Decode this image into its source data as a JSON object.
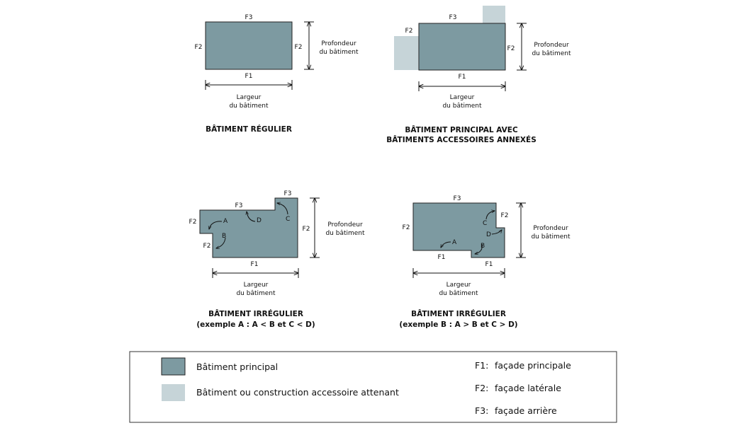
{
  "colors": {
    "main": "#7d9aa1",
    "accessory": "#c6d4d8",
    "stroke": "#222222"
  },
  "labels": {
    "f1": "F1",
    "f2": "F2",
    "f3": "F3",
    "a": "A",
    "b": "B",
    "c": "C",
    "d": "D",
    "depth_l1": "Profondeur",
    "depth_l2": "du bâtiment",
    "width_l1": "Largeur",
    "width_l2": "du bâtiment"
  },
  "diagrams": {
    "regular": {
      "title": "BÂTIMENT RÉGULIER"
    },
    "accessory": {
      "title_l1": "BÂTIMENT PRINCIPAL AVEC",
      "title_l2": "BÂTIMENTS ACCESSOIRES ANNEXÉS"
    },
    "irregular_a": {
      "title_l1": "BÂTIMENT IRRÉGULIER",
      "title_l2": "(exemple A : A < B et C < D)"
    },
    "irregular_b": {
      "title_l1": "BÂTIMENT IRRÉGULIER",
      "title_l2": "(exemple B : A > B et C > D)"
    }
  },
  "legend": {
    "main_label": "Bâtiment principal",
    "accessory_label": "Bâtiment ou construction accessoire attenant",
    "f1_code": "F1:",
    "f1_text": "façade principale",
    "f2_code": "F2:",
    "f2_text": "façade latérale",
    "f3_code": "F3:",
    "f3_text": "façade arrière"
  }
}
